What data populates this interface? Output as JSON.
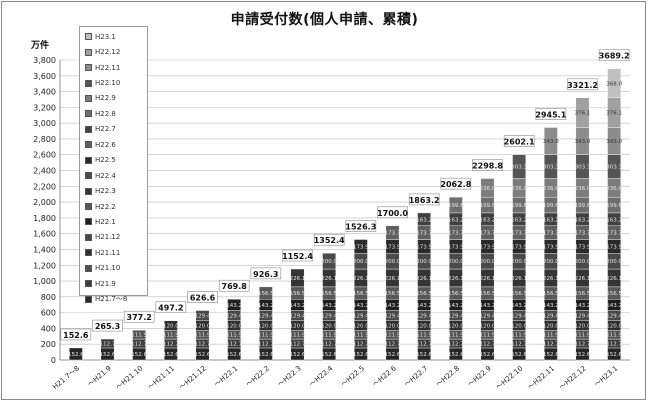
{
  "chart_data": {
    "type": "bar",
    "stacked": true,
    "title": "申請受付数(個人申請、累積)",
    "ylabel": "万件",
    "xlabel": "",
    "ylim": [
      0,
      3800
    ],
    "yticks": [
      0,
      200,
      400,
      600,
      800,
      1000,
      1200,
      1400,
      1600,
      1800,
      2000,
      2200,
      2400,
      2600,
      2800,
      3000,
      3200,
      3400,
      3600,
      3800
    ],
    "ytick_labels": [
      "0",
      "200",
      "400",
      "600",
      "800",
      "1,000",
      "1,200",
      "1,400",
      "1,600",
      "1,800",
      "2,000",
      "2,200",
      "2,400",
      "2,600",
      "2,800",
      "3,000",
      "3,200",
      "3,400",
      "3,600",
      "3,800"
    ],
    "grid": true,
    "legend_position": "top-left",
    "categories": [
      "H21.7～8",
      "～H21.9",
      "～H21.10",
      "～H21.11",
      "～H21.12",
      "～H22.1",
      "～H22.2",
      "～H22.3",
      "～H22.4",
      "～H22.5",
      "～H22.6",
      "～H22.7",
      "～H22.8",
      "～H22.9",
      "～H22.10",
      "～H22.11",
      "～H22.12",
      "～H23.1"
    ],
    "totals": [
      152.6,
      265.3,
      377.2,
      497.2,
      626.6,
      769.8,
      926.3,
      1152.4,
      1352.4,
      1526.3,
      1700.0,
      1863.2,
      2062.8,
      2298.8,
      2602.1,
      2945.1,
      3321.2,
      3689.2
    ],
    "total_labels": [
      "152.6",
      "265.3",
      "377.2",
      "497.2",
      "626.6",
      "769.8",
      "926.3",
      "1152.4",
      "1352.4",
      "1526.3",
      "1700.0",
      "1863.2",
      "2062.8",
      "2298.8",
      "2602.1",
      "2945.1",
      "3321.2",
      "3689.2"
    ],
    "series": [
      {
        "name": "H21.7～8",
        "values": [
          152.6,
          152.6,
          152.6,
          152.6,
          152.6,
          152.6,
          152.6,
          152.6,
          152.6,
          152.6,
          152.6,
          152.6,
          152.6,
          152.6,
          152.6,
          152.6,
          152.6,
          152.6
        ]
      },
      {
        "name": "H21.9",
        "values": [
          0,
          112.7,
          112.7,
          112.7,
          112.7,
          112.7,
          112.7,
          112.7,
          112.7,
          112.7,
          112.7,
          112.7,
          112.7,
          112.7,
          112.7,
          112.7,
          112.7,
          112.7
        ]
      },
      {
        "name": "H21.10",
        "values": [
          0,
          0,
          111.9,
          111.9,
          111.9,
          111.9,
          111.9,
          111.9,
          111.9,
          111.9,
          111.9,
          111.9,
          111.9,
          111.9,
          111.9,
          111.9,
          111.9,
          111.9
        ]
      },
      {
        "name": "H21.11",
        "values": [
          0,
          0,
          0,
          120.0,
          120.0,
          120.0,
          120.0,
          120.0,
          120.0,
          120.0,
          120.0,
          120.0,
          120.0,
          120.0,
          120.0,
          120.0,
          120.0,
          120.0
        ]
      },
      {
        "name": "H21.12",
        "values": [
          0,
          0,
          0,
          0,
          129.4,
          129.4,
          129.4,
          129.4,
          129.4,
          129.4,
          129.4,
          129.4,
          129.4,
          129.4,
          129.4,
          129.4,
          129.4,
          129.4
        ]
      },
      {
        "name": "H22.1",
        "values": [
          0,
          0,
          0,
          0,
          0,
          143.2,
          143.2,
          143.2,
          143.2,
          143.2,
          143.2,
          143.2,
          143.2,
          143.2,
          143.2,
          143.2,
          143.2,
          143.2
        ]
      },
      {
        "name": "H22.2",
        "values": [
          0,
          0,
          0,
          0,
          0,
          0,
          156.5,
          156.5,
          156.5,
          156.5,
          156.5,
          156.5,
          156.5,
          156.5,
          156.5,
          156.5,
          156.5,
          156.5
        ]
      },
      {
        "name": "H22.3",
        "values": [
          0,
          0,
          0,
          0,
          0,
          0,
          0,
          226.1,
          226.1,
          226.1,
          226.1,
          226.1,
          226.1,
          226.1,
          226.1,
          226.1,
          226.1,
          226.1
        ]
      },
      {
        "name": "H22.4",
        "values": [
          0,
          0,
          0,
          0,
          0,
          0,
          0,
          0,
          200.0,
          200.0,
          200.0,
          200.0,
          200.0,
          200.0,
          200.0,
          200.0,
          200.0,
          200.0
        ]
      },
      {
        "name": "H22.5",
        "values": [
          0,
          0,
          0,
          0,
          0,
          0,
          0,
          0,
          0,
          173.9,
          173.9,
          173.9,
          173.9,
          173.9,
          173.9,
          173.9,
          173.9,
          173.9
        ]
      },
      {
        "name": "H22.6",
        "values": [
          0,
          0,
          0,
          0,
          0,
          0,
          0,
          0,
          0,
          0,
          173.7,
          173.7,
          173.7,
          173.7,
          173.7,
          173.7,
          173.7,
          173.7
        ]
      },
      {
        "name": "H22.7",
        "values": [
          0,
          0,
          0,
          0,
          0,
          0,
          0,
          0,
          0,
          0,
          0,
          163.2,
          163.2,
          163.2,
          163.2,
          163.2,
          163.2,
          163.2
        ]
      },
      {
        "name": "H22.8",
        "values": [
          0,
          0,
          0,
          0,
          0,
          0,
          0,
          0,
          0,
          0,
          0,
          0,
          199.6,
          199.6,
          199.6,
          199.6,
          199.6,
          199.6
        ]
      },
      {
        "name": "H22.9",
        "values": [
          0,
          0,
          0,
          0,
          0,
          0,
          0,
          0,
          0,
          0,
          0,
          0,
          0,
          236.0,
          236.0,
          236.0,
          236.0,
          236.0
        ]
      },
      {
        "name": "H22.10",
        "values": [
          0,
          0,
          0,
          0,
          0,
          0,
          0,
          0,
          0,
          0,
          0,
          0,
          0,
          0,
          303.3,
          303.3,
          303.3,
          303.3
        ]
      },
      {
        "name": "H22.11",
        "values": [
          0,
          0,
          0,
          0,
          0,
          0,
          0,
          0,
          0,
          0,
          0,
          0,
          0,
          0,
          0,
          343.0,
          343.0,
          343.0
        ]
      },
      {
        "name": "H22.12",
        "values": [
          0,
          0,
          0,
          0,
          0,
          0,
          0,
          0,
          0,
          0,
          0,
          0,
          0,
          0,
          0,
          0,
          376.1,
          376.1
        ]
      },
      {
        "name": "H23.1",
        "values": [
          0,
          0,
          0,
          0,
          0,
          0,
          0,
          0,
          0,
          0,
          0,
          0,
          0,
          0,
          0,
          0,
          0,
          368.0
        ]
      }
    ],
    "segment_labels": [
      [
        "152.6"
      ],
      [
        "152.6",
        "112.7"
      ],
      [
        "152.6",
        "112.7",
        "111.9"
      ],
      [
        "152.6",
        "112.7",
        "111.9",
        "120.0"
      ],
      [
        "152.6",
        "112.7",
        "111.9",
        "120.0",
        "129.4"
      ],
      [
        "152.6",
        "112.7",
        "111.9",
        "120.0",
        "129.4",
        "143.2"
      ],
      [
        "152.6",
        "112.7",
        "111.9",
        "120.0",
        "129.4",
        "143.2",
        "156.5"
      ],
      [
        "152.6",
        "112.7",
        "111.9",
        "120.0",
        "129.4",
        "143.2",
        "156.5",
        "226.1"
      ],
      [
        "152.6",
        "112.7",
        "111.9",
        "120.0",
        "129.4",
        "143.2",
        "156.5",
        "226.1",
        "200.0"
      ],
      [
        "152.6",
        "112.7",
        "111.9",
        "120.0",
        "129.4",
        "143.2",
        "156.5",
        "226.1",
        "200.0",
        "173.9"
      ],
      [
        "152.6",
        "112.7",
        "111.9",
        "120.0",
        "129.4",
        "143.2",
        "156.5",
        "226.1",
        "200.0",
        "173.9",
        "173.7"
      ],
      [
        "152.6",
        "112.7",
        "111.9",
        "120.0",
        "129.4",
        "143.2",
        "156.5",
        "226.1",
        "200.0",
        "173.9",
        "173.7",
        "163.2"
      ],
      [
        "152.6",
        "112.7",
        "111.9",
        "120.0",
        "129.4",
        "143.2",
        "156.5",
        "226.1",
        "200.0",
        "173.9",
        "173.7",
        "163.2",
        "199.6"
      ],
      [
        "152.6",
        "112.7",
        "111.9",
        "120.0",
        "129.4",
        "143.2",
        "156.5",
        "226.1",
        "200.0",
        "173.9",
        "173.7",
        "163.2",
        "199.6",
        "236.0"
      ],
      [
        "152.6",
        "112.7",
        "111.9",
        "120.0",
        "129.4",
        "143.2",
        "156.5",
        "226.1",
        "200.0",
        "173.9",
        "173.7",
        "163.2",
        "199.6",
        "236.0",
        "303.3"
      ],
      [
        "152.6",
        "112.7",
        "111.9",
        "120.0",
        "129.4",
        "143.2",
        "156.5",
        "226.1",
        "200.0",
        "173.9",
        "173.7",
        "163.2",
        "199.6",
        "236.0",
        "303.3",
        "343.0"
      ],
      [
        "152.6",
        "112.7",
        "111.9",
        "120.0",
        "129.4",
        "143.2",
        "156.5",
        "226.1",
        "200.0",
        "173.9",
        "173.7",
        "163.2",
        "199.6",
        "236.0",
        "303.3",
        "343.0",
        "376.1"
      ],
      [
        "152.6",
        "112.7",
        "111.9",
        "120.0",
        "129.4",
        "143.2",
        "156.5",
        "226.1",
        "200.0",
        "173.9",
        "173.7",
        "163.2",
        "199.6",
        "236.0",
        "303.3",
        "343.0",
        "376.1",
        "368.0"
      ]
    ],
    "colors": [
      "#262626",
      "#3c3c3c",
      "#525252",
      "#2e2e2e",
      "#484848",
      "#1f1f1f",
      "#585858",
      "#353535",
      "#4a4a4a",
      "#2a2a2a",
      "#606060",
      "#404040",
      "#6e6e6e",
      "#7c7c7c",
      "#555555",
      "#8c8c8c",
      "#a0a0a0",
      "#c0c0c0"
    ],
    "legend_order": [
      "H23.1",
      "H22.12",
      "H22.11",
      "H22.10",
      "H22.9",
      "H22.8",
      "H22.7",
      "H22.6",
      "H22.5",
      "H22.4",
      "H22.3",
      "H22.2",
      "H22.1",
      "H21.12",
      "H21.11",
      "H21.10",
      "H21.9",
      "H21.7～8"
    ]
  }
}
